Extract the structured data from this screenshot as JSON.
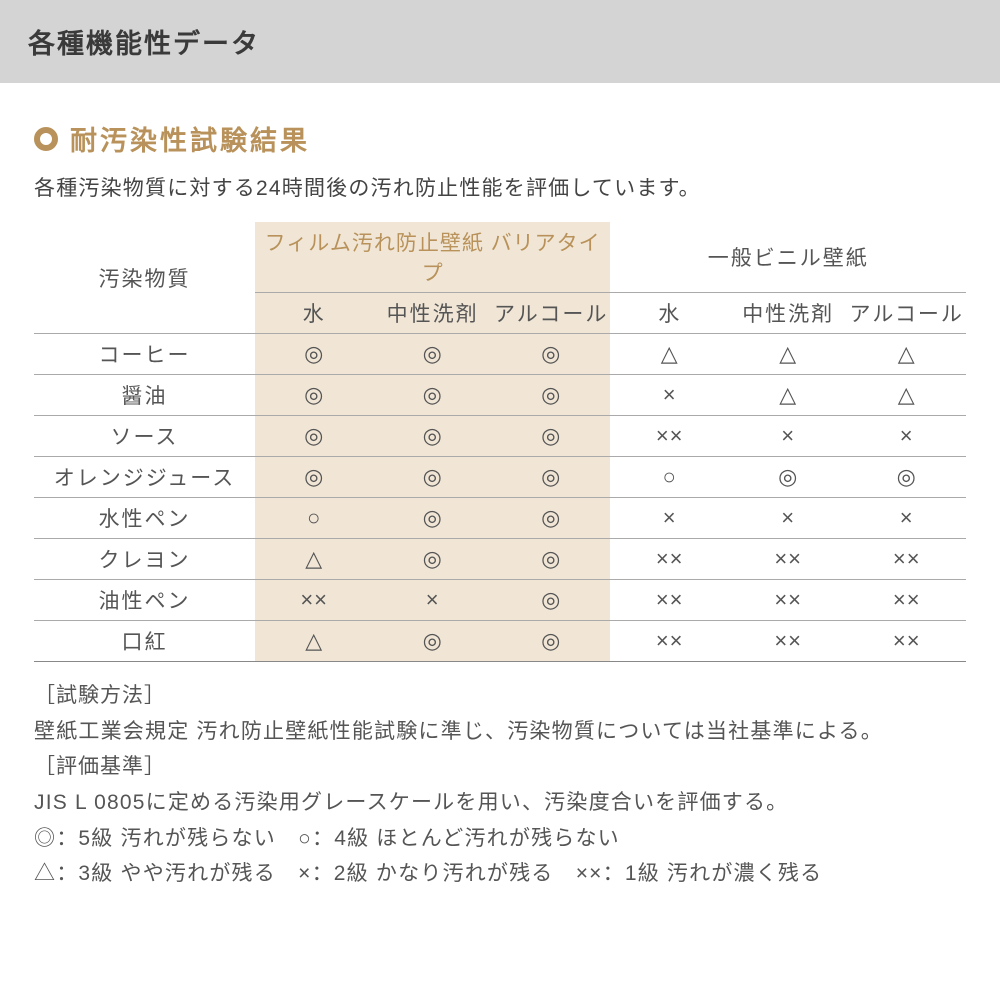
{
  "header": {
    "title": "各種機能性データ"
  },
  "section": {
    "subtitle": "耐汚染性試験結果",
    "lead": "各種汚染物質に対する24時間後の汚れ防止性能を評価しています。",
    "bullet_color": "#b8925a"
  },
  "table": {
    "row_header": "汚染物質",
    "groups": [
      {
        "label": "フィルム汚れ防止壁紙 バリアタイプ",
        "highlight": true,
        "color": "#b8925a"
      },
      {
        "label": "一般ビニル壁紙",
        "highlight": false,
        "color": "#555555"
      }
    ],
    "sub_headers": [
      "水",
      "中性洗剤",
      "アルコール",
      "水",
      "中性洗剤",
      "アルコール"
    ],
    "rows": [
      {
        "label": "コーヒー",
        "cells": [
          "◎",
          "◎",
          "◎",
          "△",
          "△",
          "△"
        ]
      },
      {
        "label": "醤油",
        "cells": [
          "◎",
          "◎",
          "◎",
          "×",
          "△",
          "△"
        ]
      },
      {
        "label": "ソース",
        "cells": [
          "◎",
          "◎",
          "◎",
          "××",
          "×",
          "×"
        ]
      },
      {
        "label": "オレンジジュース",
        "cells": [
          "◎",
          "◎",
          "◎",
          "○",
          "◎",
          "◎"
        ]
      },
      {
        "label": "水性ペン",
        "cells": [
          "○",
          "◎",
          "◎",
          "×",
          "×",
          "×"
        ]
      },
      {
        "label": "クレヨン",
        "cells": [
          "△",
          "◎",
          "◎",
          "××",
          "××",
          "××"
        ]
      },
      {
        "label": "油性ペン",
        "cells": [
          "××",
          "×",
          "◎",
          "××",
          "××",
          "××"
        ]
      },
      {
        "label": "口紅",
        "cells": [
          "△",
          "◎",
          "◎",
          "××",
          "××",
          "××"
        ]
      }
    ],
    "highlight_cols": [
      0,
      1,
      2
    ],
    "highlight_bg": "#f1e6d6",
    "border_color": "#aaaaaa"
  },
  "notes": {
    "method_label": "［試験方法］",
    "method_text": "壁紙工業会規定 汚れ防止壁紙性能試験に準じ、汚染物質については当社基準による。",
    "criteria_label": "［評価基準］",
    "criteria_text": "JIS L 0805に定める汚染用グレースケールを用い、汚染度合いを評価する。",
    "legend_line1": "◎：5級 汚れが残らない　○：4級 ほとんど汚れが残らない",
    "legend_line2": "△：3級 やや汚れが残る　×：2級 かなり汚れが残る　××：1級 汚れが濃く残る"
  }
}
